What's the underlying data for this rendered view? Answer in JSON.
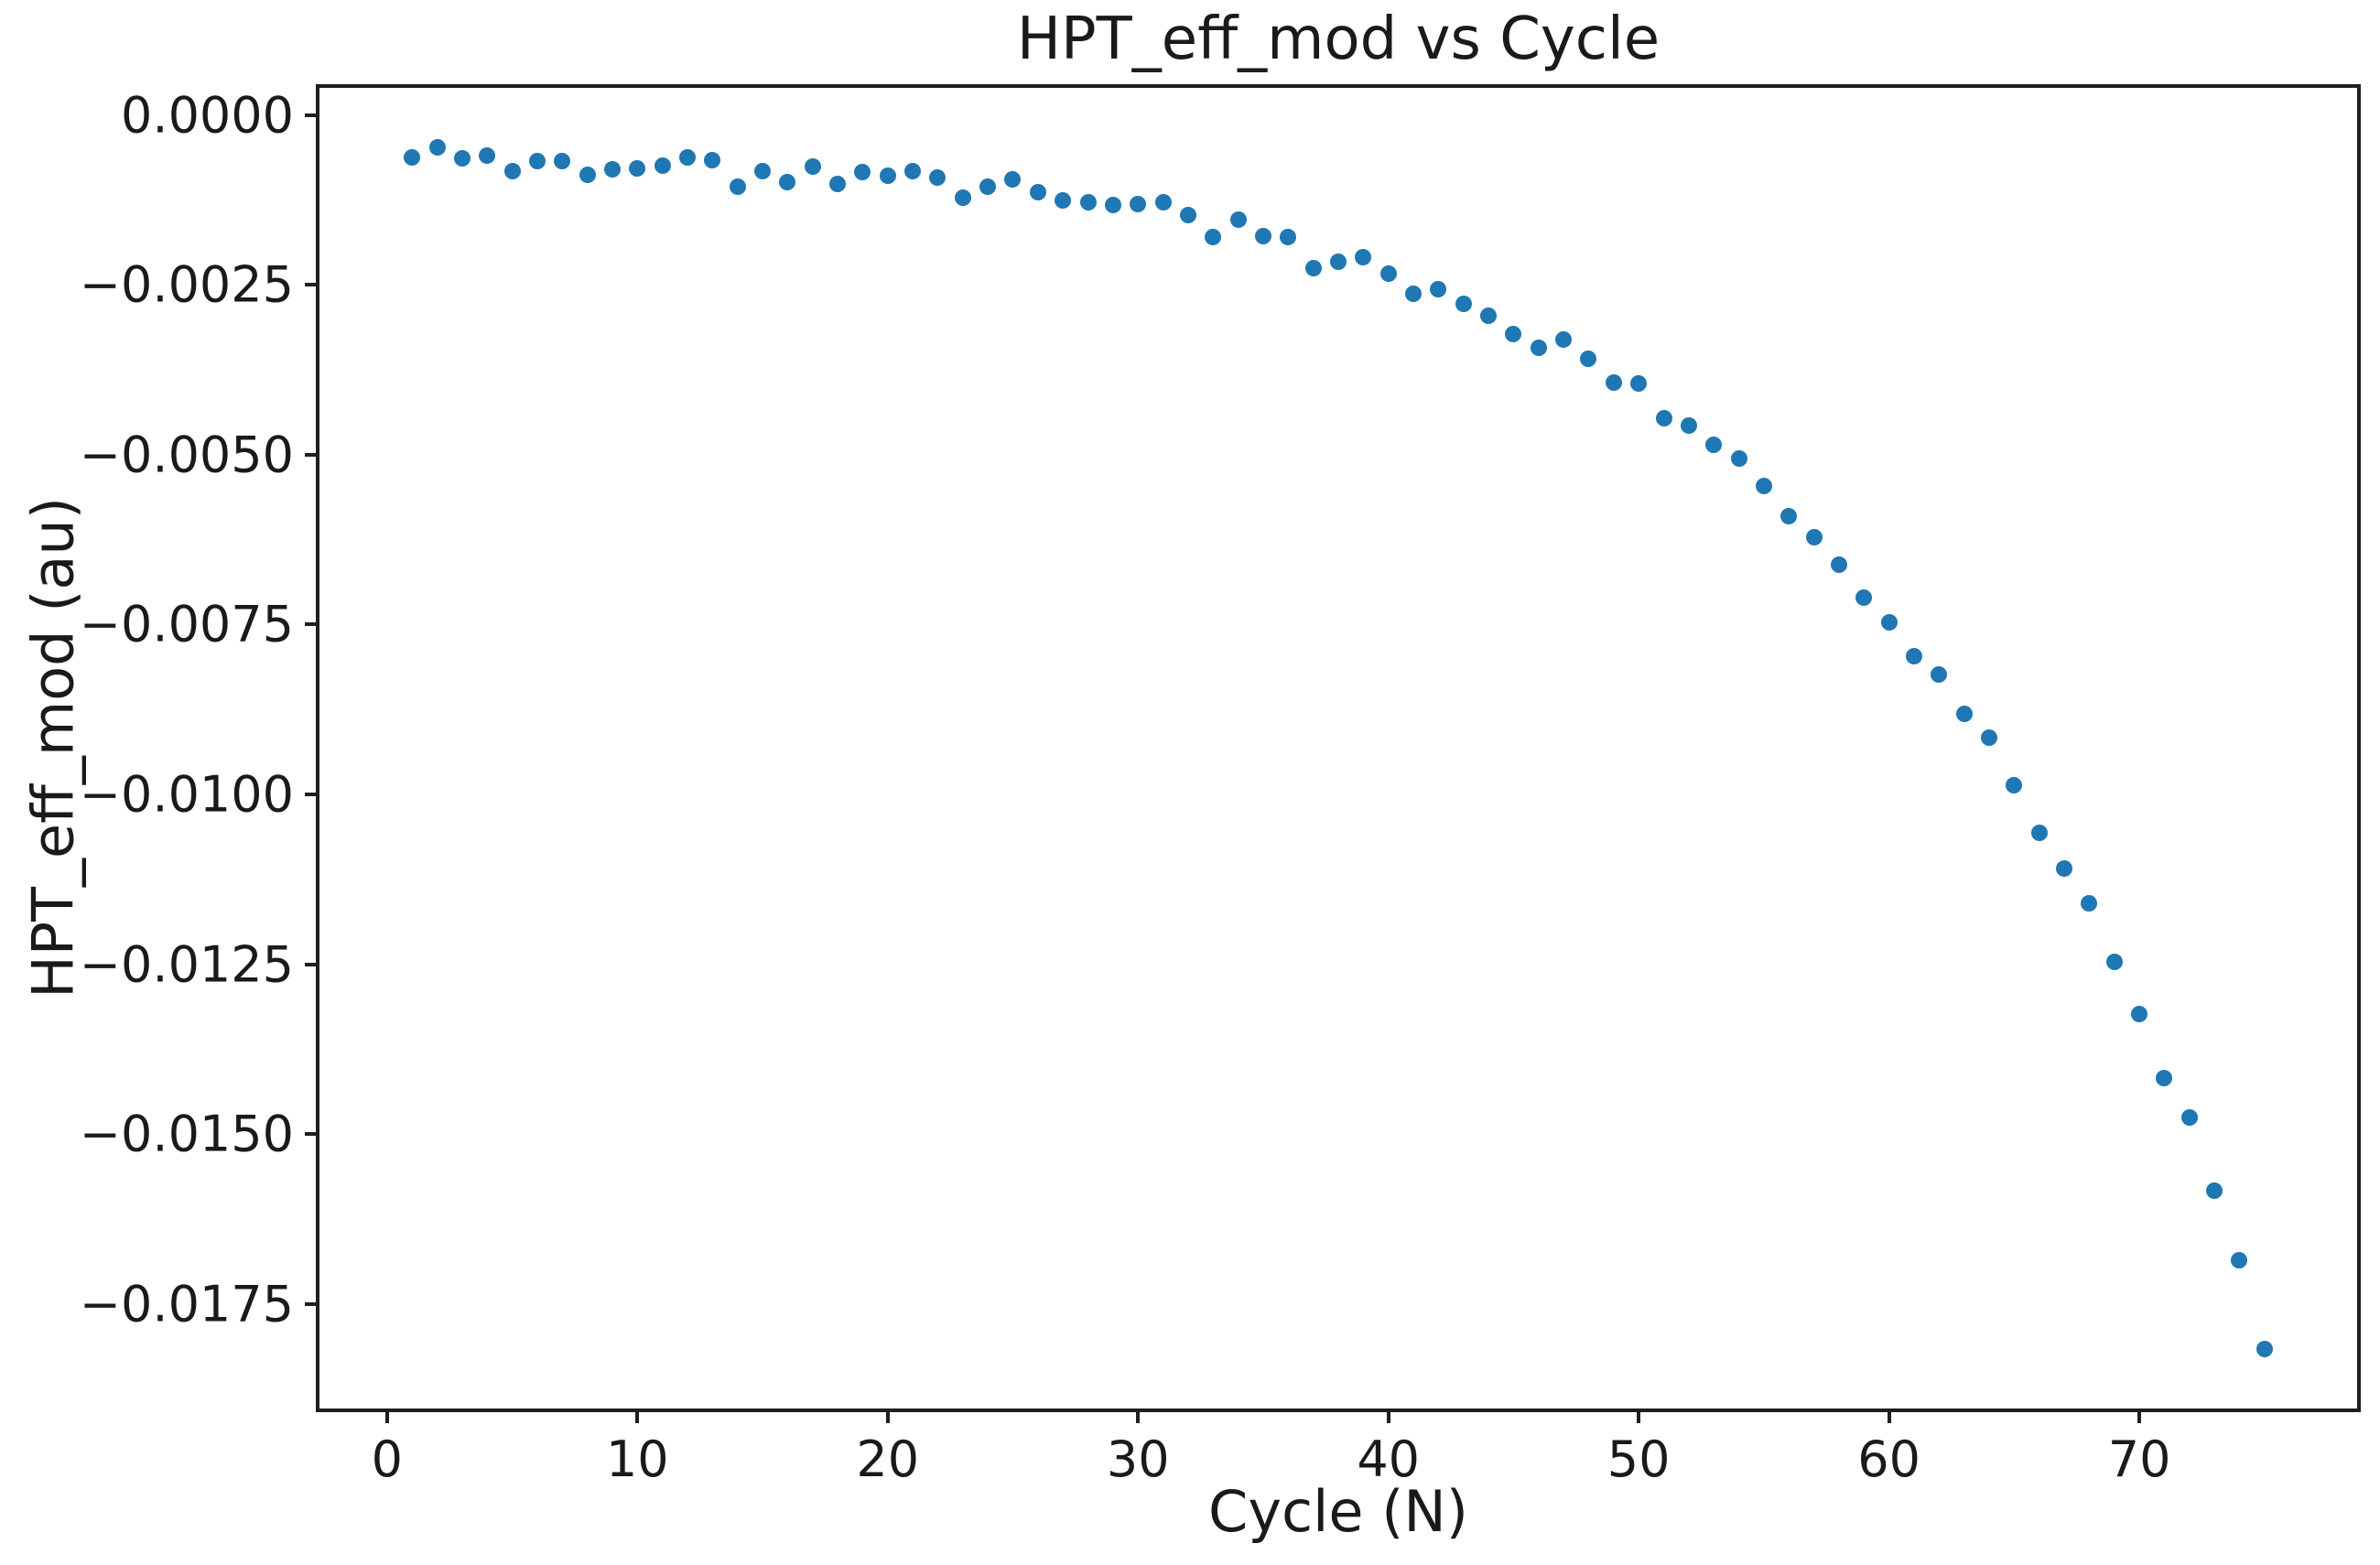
{
  "figure": {
    "background": "#ffffff",
    "spine_color": "#1f1f1f",
    "text_color": "#1a1a1a"
  },
  "chart_data": {
    "type": "scatter",
    "title": "HPT_eff_mod vs Cycle",
    "xlabel": "Cycle (N)",
    "ylabel": "HPT_eff_mod (au)",
    "marker_color": "#1f77b4",
    "grid": false,
    "legend": null,
    "xlim": [
      -2.7,
      78.7
    ],
    "ylim": [
      -0.01904,
      0.0004
    ],
    "xticks": [
      {
        "value": 0,
        "label": "0"
      },
      {
        "value": 10,
        "label": "10"
      },
      {
        "value": 20,
        "label": "20"
      },
      {
        "value": 30,
        "label": "30"
      },
      {
        "value": 40,
        "label": "40"
      },
      {
        "value": 50,
        "label": "50"
      },
      {
        "value": 60,
        "label": "60"
      },
      {
        "value": 70,
        "label": "70"
      }
    ],
    "yticks": [
      {
        "value": 0.0,
        "label": "0.0000"
      },
      {
        "value": -0.0025,
        "label": "−0.0025"
      },
      {
        "value": -0.005,
        "label": "−0.0050"
      },
      {
        "value": -0.0075,
        "label": "−0.0075"
      },
      {
        "value": -0.01,
        "label": "−0.0100"
      },
      {
        "value": -0.0125,
        "label": "−0.0125"
      },
      {
        "value": -0.015,
        "label": "−0.0150"
      },
      {
        "value": -0.0175,
        "label": "−0.0175"
      }
    ],
    "x": [
      1,
      2,
      3,
      4,
      5,
      6,
      7,
      8,
      9,
      10,
      11,
      12,
      13,
      14,
      15,
      16,
      17,
      18,
      19,
      20,
      21,
      22,
      23,
      24,
      25,
      26,
      27,
      28,
      29,
      30,
      31,
      32,
      33,
      34,
      35,
      36,
      37,
      38,
      39,
      40,
      41,
      42,
      43,
      44,
      45,
      46,
      47,
      48,
      49,
      50,
      51,
      52,
      53,
      54,
      55,
      56,
      57,
      58,
      59,
      60,
      61,
      62,
      63,
      64,
      65,
      66,
      67,
      68,
      69,
      70,
      71,
      72,
      73,
      74,
      75
    ],
    "y": [
      -0.00063,
      -0.00048,
      -0.00064,
      -0.0006,
      -0.00082,
      -0.00068,
      -0.00068,
      -0.00088,
      -0.0008,
      -0.00078,
      -0.00074,
      -0.00062,
      -0.00067,
      -0.00105,
      -0.00083,
      -0.00099,
      -0.00076,
      -0.00101,
      -0.00084,
      -0.0009,
      -0.00083,
      -0.00092,
      -0.00121,
      -0.00106,
      -0.00095,
      -0.00113,
      -0.00126,
      -0.00129,
      -0.00133,
      -0.00131,
      -0.00128,
      -0.00147,
      -0.0018,
      -0.00154,
      -0.00178,
      -0.0018,
      -0.00225,
      -0.00216,
      -0.00209,
      -0.00233,
      -0.00263,
      -0.00257,
      -0.00278,
      -0.00295,
      -0.00322,
      -0.00342,
      -0.00331,
      -0.00359,
      -0.00394,
      -0.00395,
      -0.00446,
      -0.00457,
      -0.00485,
      -0.00505,
      -0.00546,
      -0.0059,
      -0.00621,
      -0.00662,
      -0.0071,
      -0.00747,
      -0.00796,
      -0.00823,
      -0.00882,
      -0.00917,
      -0.00987,
      -0.01056,
      -0.01109,
      -0.01161,
      -0.01247,
      -0.01324,
      -0.01418,
      -0.01476,
      -0.01583,
      -0.01686,
      -0.01816
    ]
  }
}
